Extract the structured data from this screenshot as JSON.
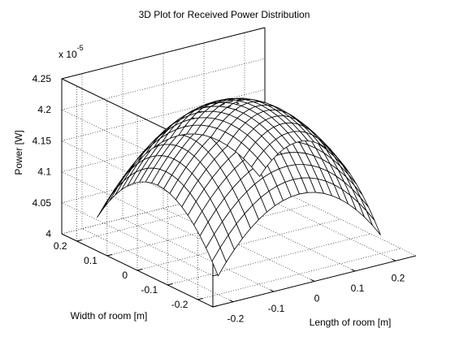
{
  "chart_data": {
    "type": "surface",
    "title": "3D Plot for Received Power Distribution",
    "xlabel": "Length of room [m]",
    "ylabel": "Width of room [m]",
    "zlabel": "Power [W]",
    "z_exponent": "x 10",
    "z_exponent_power": "-5",
    "xlim": [
      -0.25,
      0.25
    ],
    "ylim": [
      -0.25,
      0.25
    ],
    "zlim": [
      4.0,
      4.25
    ],
    "x_ticks": [
      -0.2,
      -0.1,
      0,
      0.1,
      0.2
    ],
    "x_tick_labels": [
      "-0.2",
      "-0.1",
      "0",
      "0.1",
      "0.2"
    ],
    "y_ticks": [
      -0.2,
      -0.1,
      0,
      0.1,
      0.2
    ],
    "y_tick_labels": [
      "-0.2",
      "-0.1",
      "0",
      "0.1",
      "0.2"
    ],
    "z_ticks": [
      4.0,
      4.05,
      4.1,
      4.15,
      4.2,
      4.25
    ],
    "z_tick_labels": [
      "4",
      "4.05",
      "4.1",
      "4.15",
      "4.2",
      "4.25"
    ],
    "grid": true,
    "mesh_resolution": 21,
    "surface_peak": 4.228,
    "surface_corner": 4.03,
    "mesh_color": "#000000",
    "face_color": "#ffffff"
  }
}
